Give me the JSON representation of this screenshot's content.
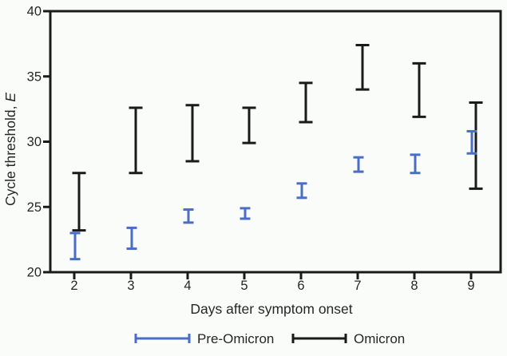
{
  "figure": {
    "background": "#fafcfa"
  },
  "chart_data": {
    "type": "errorbar",
    "title": "",
    "xlabel": "Days after symptom onset",
    "ylabel": "Cycle threshold, E",
    "ylabel_prefix": "Cycle threshold, ",
    "ylabel_italic": "E",
    "x": [
      2,
      3,
      4,
      5,
      6,
      7,
      8,
      9
    ],
    "xticks": [
      "2",
      "3",
      "4",
      "5",
      "6",
      "7",
      "8",
      "9"
    ],
    "yticks": [
      20,
      25,
      30,
      35,
      40
    ],
    "ylim": [
      20,
      40
    ],
    "grid": false,
    "legend_position": "bottom-center",
    "series": [
      {
        "name": "Pre-Omicron",
        "color": "#4a6ec5",
        "cap_width": 13,
        "x_offset": 1,
        "ranges": [
          [
            21.0,
            23.0
          ],
          [
            21.8,
            23.4
          ],
          [
            23.8,
            24.8
          ],
          [
            24.1,
            24.9
          ],
          [
            25.7,
            26.8
          ],
          [
            27.7,
            28.8
          ],
          [
            27.6,
            29.0
          ],
          [
            29.1,
            30.8
          ]
        ]
      },
      {
        "name": "Omicron",
        "color": "#1a1a1a",
        "cap_width": 17,
        "x_offset": 6,
        "ranges": [
          [
            23.2,
            27.6
          ],
          [
            27.6,
            32.6
          ],
          [
            28.5,
            32.8
          ],
          [
            29.9,
            32.6
          ],
          [
            31.5,
            34.5
          ],
          [
            34.0,
            37.4
          ],
          [
            31.9,
            36.0
          ],
          [
            26.4,
            33.0
          ]
        ]
      }
    ]
  }
}
